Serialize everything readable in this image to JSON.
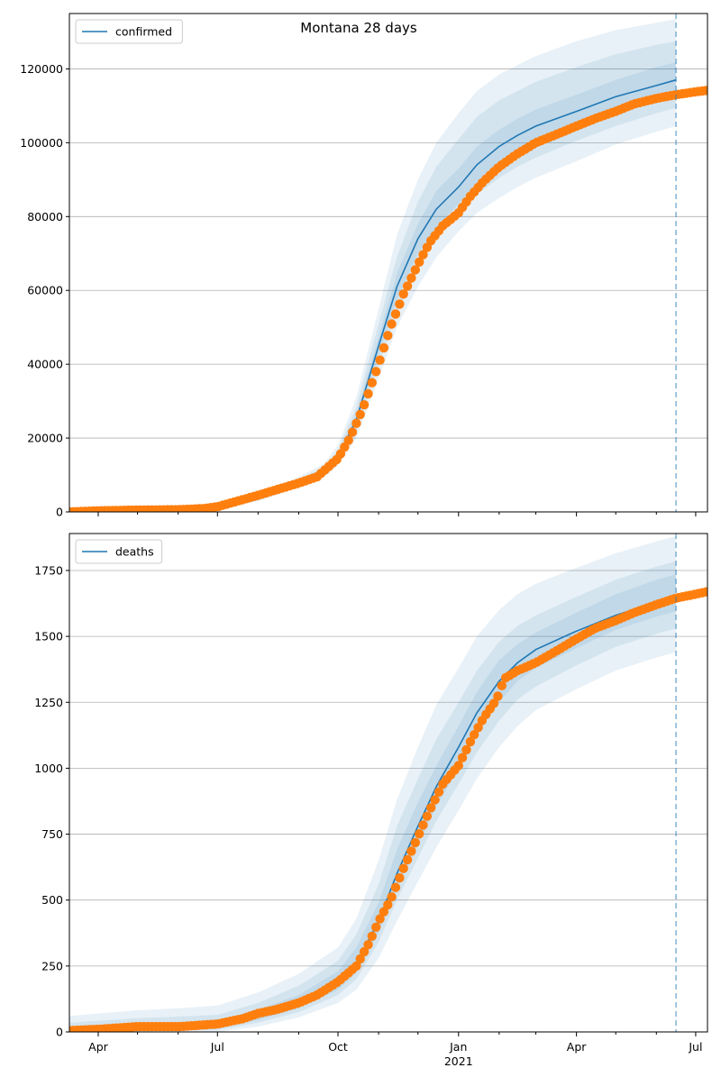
{
  "figure": {
    "title": "Montana 28 days",
    "colors": {
      "model": "#1f77b4",
      "observed": "#ff7f0e",
      "band": "#1f77b4",
      "grid": "#b0b0b0"
    }
  },
  "chart_data": [
    {
      "type": "line",
      "legend": {
        "entries": [
          "confirmed"
        ],
        "placement": "top-left"
      },
      "xlim": [
        "2020-03-10",
        "2021-07-10"
      ],
      "ylim": [
        0,
        135000
      ],
      "yticks": [
        0,
        20000,
        40000,
        60000,
        80000,
        100000,
        120000
      ],
      "ytick_labels": [
        "0",
        "20000",
        "40000",
        "60000",
        "80000",
        "100000",
        "120000"
      ],
      "grid": "horizontal",
      "forecast_start": "2021-06-16",
      "model_line": {
        "x": [
          "2020-03-10",
          "2020-04-01",
          "2020-05-01",
          "2020-06-01",
          "2020-07-01",
          "2020-08-01",
          "2020-09-01",
          "2020-09-20",
          "2020-10-01",
          "2020-10-15",
          "2020-11-01",
          "2020-11-15",
          "2020-12-01",
          "2020-12-15",
          "2021-01-01",
          "2021-01-15",
          "2021-02-01",
          "2021-02-15",
          "2021-03-01",
          "2021-04-01",
          "2021-05-01",
          "2021-06-01",
          "2021-06-16"
        ],
        "y": [
          0,
          300,
          500,
          700,
          900,
          3500,
          8000,
          11000,
          15000,
          25000,
          45000,
          61000,
          74000,
          82000,
          88000,
          94000,
          99000,
          102000,
          104500,
          108500,
          112500,
          115500,
          117000
        ]
      },
      "bands": [
        {
          "upper": [
            0,
            500,
            700,
            900,
            1100,
            4200,
            9500,
            13000,
            18000,
            31000,
            55000,
            75000,
            90000,
            100000,
            108000,
            114000,
            118500,
            121000,
            123500,
            127500,
            130500,
            132500,
            133500
          ],
          "lower": [
            0,
            150,
            300,
            500,
            700,
            2900,
            6700,
            9300,
            12500,
            20000,
            36000,
            50000,
            61000,
            69000,
            76000,
            81000,
            85000,
            88000,
            90500,
            95000,
            99500,
            103000,
            104500
          ]
        },
        {
          "upper": [
            0,
            420,
            620,
            820,
            1000,
            3900,
            8900,
            12100,
            16700,
            28500,
            51000,
            69000,
            84000,
            93500,
            101000,
            107000,
            111500,
            114000,
            116500,
            120500,
            124000,
            126500,
            127500
          ],
          "lower": [
            0,
            200,
            380,
            580,
            780,
            3100,
            7100,
            9900,
            13400,
            21800,
            39500,
            54000,
            66000,
            74000,
            80500,
            86000,
            90500,
            93500,
            96000,
            100500,
            104500,
            108000,
            109500
          ]
        },
        {
          "upper": [
            0,
            360,
            560,
            760,
            950,
            3700,
            8400,
            11500,
            15800,
            26500,
            47500,
            64500,
            78000,
            87000,
            93000,
            99000,
            103500,
            106500,
            109000,
            113000,
            117000,
            120500,
            121800
          ],
          "lower": [
            0,
            250,
            440,
            640,
            850,
            3300,
            7600,
            10500,
            14200,
            23500,
            42500,
            57500,
            70000,
            77000,
            83500,
            89000,
            94500,
            97500,
            100000,
            104000,
            108000,
            111000,
            112500
          ]
        }
      ],
      "observed": {
        "x": [
          "2020-03-10",
          "2020-04-01",
          "2020-05-01",
          "2020-06-01",
          "2020-06-20",
          "2020-07-01",
          "2020-07-15",
          "2020-08-01",
          "2020-08-15",
          "2020-09-01",
          "2020-09-15",
          "2020-10-01",
          "2020-10-10",
          "2020-10-20",
          "2020-11-01",
          "2020-11-10",
          "2020-11-20",
          "2020-12-01",
          "2020-12-10",
          "2020-12-20",
          "2021-01-01",
          "2021-01-10",
          "2021-01-20",
          "2021-02-01",
          "2021-02-15",
          "2021-03-01",
          "2021-03-15",
          "2021-04-01",
          "2021-04-15",
          "2021-05-01",
          "2021-05-15",
          "2021-06-01",
          "2021-06-16",
          "2021-07-01",
          "2021-07-10"
        ],
        "y": [
          0,
          300,
          500,
          600,
          900,
          1400,
          2800,
          4500,
          6000,
          7800,
          9500,
          14500,
          20000,
          28000,
          40000,
          50000,
          59000,
          67000,
          73000,
          77500,
          81000,
          85500,
          89500,
          93500,
          97000,
          100000,
          102000,
          104500,
          106500,
          108500,
          110500,
          112000,
          113000,
          113800,
          114200
        ]
      }
    },
    {
      "type": "line",
      "legend": {
        "entries": [
          "deaths"
        ],
        "placement": "top-left"
      },
      "xlim": [
        "2020-03-10",
        "2021-07-10"
      ],
      "ylim": [
        0,
        1890
      ],
      "yticks": [
        0,
        250,
        500,
        750,
        1000,
        1250,
        1500,
        1750
      ],
      "ytick_labels": [
        "0",
        "250",
        "500",
        "750",
        "1000",
        "1250",
        "1500",
        "1750"
      ],
      "xticks": [
        "2020-04-01",
        "2020-07-01",
        "2020-10-01",
        "2021-01-01",
        "2021-04-01",
        "2021-07-01"
      ],
      "xtick_labels": [
        "Apr",
        "Jul",
        "Oct",
        "Jan\n2021",
        "Apr",
        "Jul"
      ],
      "grid": "horizontal",
      "forecast_start": "2021-06-16",
      "model_line": {
        "x": [
          "2020-03-10",
          "2020-04-01",
          "2020-05-01",
          "2020-06-01",
          "2020-07-01",
          "2020-08-01",
          "2020-09-01",
          "2020-10-01",
          "2020-10-15",
          "2020-11-01",
          "2020-11-15",
          "2020-12-01",
          "2020-12-15",
          "2021-01-01",
          "2021-01-15",
          "2021-02-01",
          "2021-02-15",
          "2021-03-01",
          "2021-04-01",
          "2021-05-01",
          "2021-06-01",
          "2021-06-16"
        ],
        "y": [
          5,
          8,
          15,
          20,
          25,
          60,
          110,
          190,
          260,
          420,
          600,
          780,
          930,
          1080,
          1210,
          1330,
          1400,
          1450,
          1520,
          1580,
          1630,
          1650
        ]
      },
      "bands": [
        {
          "upper": [
            60,
            70,
            82,
            90,
            100,
            150,
            220,
            320,
            430,
            650,
            880,
            1080,
            1240,
            1380,
            1500,
            1600,
            1660,
            1700,
            1760,
            1815,
            1860,
            1880
          ],
          "lower": [
            0,
            0,
            0,
            0,
            0,
            20,
            55,
            110,
            160,
            280,
            420,
            570,
            700,
            840,
            960,
            1080,
            1160,
            1220,
            1300,
            1370,
            1420,
            1440
          ]
        },
        {
          "upper": [
            35,
            42,
            52,
            58,
            65,
            110,
            175,
            270,
            370,
            560,
            780,
            960,
            1110,
            1250,
            1370,
            1480,
            1540,
            1580,
            1650,
            1715,
            1765,
            1785
          ],
          "lower": [
            0,
            0,
            2,
            5,
            8,
            35,
            75,
            140,
            200,
            340,
            500,
            660,
            800,
            940,
            1060,
            1180,
            1260,
            1310,
            1390,
            1460,
            1510,
            1530
          ]
        },
        {
          "upper": [
            18,
            22,
            30,
            36,
            42,
            85,
            140,
            230,
            320,
            490,
            690,
            870,
            1010,
            1160,
            1290,
            1410,
            1470,
            1515,
            1590,
            1660,
            1715,
            1735
          ],
          "lower": [
            0,
            2,
            6,
            10,
            14,
            45,
            90,
            160,
            225,
            375,
            545,
            710,
            855,
            1000,
            1130,
            1250,
            1330,
            1380,
            1455,
            1525,
            1575,
            1595
          ]
        }
      ],
      "observed": {
        "x": [
          "2020-03-10",
          "2020-04-01",
          "2020-05-01",
          "2020-06-01",
          "2020-07-01",
          "2020-07-20",
          "2020-08-01",
          "2020-08-15",
          "2020-09-01",
          "2020-09-15",
          "2020-10-01",
          "2020-10-15",
          "2020-10-25",
          "2020-11-01",
          "2020-11-10",
          "2020-11-20",
          "2020-12-01",
          "2020-12-10",
          "2020-12-20",
          "2021-01-01",
          "2021-01-10",
          "2021-01-20",
          "2021-01-30",
          "2021-02-05",
          "2021-02-15",
          "2021-03-01",
          "2021-03-15",
          "2021-04-01",
          "2021-04-15",
          "2021-05-01",
          "2021-05-15",
          "2021-06-01",
          "2021-06-16",
          "2021-07-01",
          "2021-07-10"
        ],
        "y": [
          5,
          10,
          20,
          20,
          30,
          50,
          70,
          85,
          110,
          140,
          190,
          250,
          340,
          420,
          500,
          620,
          740,
          840,
          940,
          1010,
          1100,
          1190,
          1260,
          1340,
          1370,
          1400,
          1440,
          1490,
          1530,
          1560,
          1590,
          1620,
          1645,
          1660,
          1670
        ]
      }
    }
  ]
}
